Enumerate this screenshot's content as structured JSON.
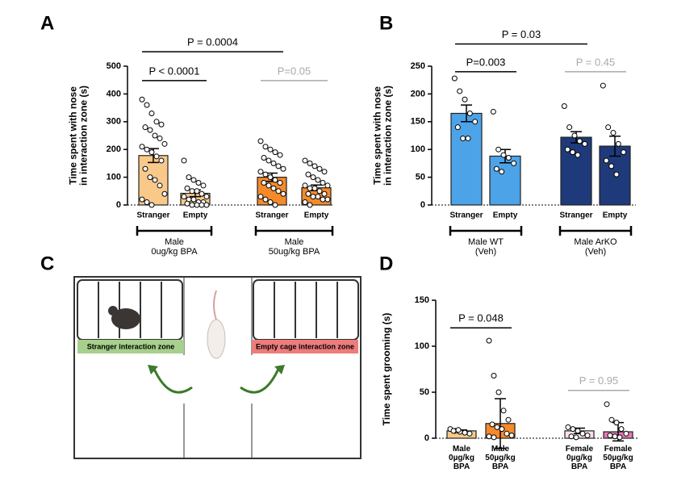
{
  "chart_data": [
    {
      "type": "bar",
      "panel": "A",
      "ylabel": "Time spent with nose\nin interaction zone (s)",
      "categories": [
        "Stranger",
        "Empty",
        "Stranger",
        "Empty"
      ],
      "values": [
        178,
        42,
        100,
        62
      ],
      "errors": [
        25,
        12,
        15,
        10
      ],
      "colors": [
        "#f9c98a",
        "#f9c98a",
        "#f58a2a",
        "#f58a2a"
      ],
      "points": [
        [
          380,
          360,
          330,
          300,
          290,
          280,
          270,
          250,
          240,
          220,
          210,
          200,
          190,
          175,
          160,
          130,
          100,
          90,
          70,
          40,
          20,
          10,
          0
        ],
        [
          160,
          100,
          90,
          80,
          70,
          60,
          50,
          50,
          40,
          30,
          30,
          20,
          20,
          10,
          10,
          5,
          0,
          0,
          0,
          0
        ],
        [
          230,
          210,
          200,
          190,
          180,
          170,
          160,
          150,
          140,
          130,
          120,
          110,
          100,
          90,
          80,
          80,
          70,
          60,
          50,
          40,
          30,
          20,
          10,
          0
        ],
        [
          160,
          150,
          140,
          130,
          120,
          110,
          100,
          90,
          80,
          70,
          70,
          60,
          60,
          50,
          40,
          40,
          30,
          30,
          20,
          20,
          10,
          0
        ]
      ],
      "ylim": [
        0,
        500
      ],
      "yticks": [
        0,
        100,
        200,
        300,
        400,
        500
      ],
      "annotations": [
        {
          "text": "P < 0.0001",
          "from": 0,
          "to": 1,
          "level": 448,
          "color": "#000000"
        },
        {
          "text": "P = 0.0004",
          "from": 0,
          "to": 2,
          "level": 552,
          "color": "#000000"
        },
        {
          "text": "P=0.05",
          "from": 2,
          "to": 3,
          "level": 448,
          "color": "#aaaaaa"
        }
      ],
      "groups": [
        {
          "label": "Male\n0ug/kg BPA",
          "from": 0,
          "to": 1
        },
        {
          "label": "Male\n50ug/kg BPA",
          "from": 2,
          "to": 3
        }
      ]
    },
    {
      "type": "bar",
      "panel": "B",
      "ylabel": "Time spent with nose\nin interaction zone (s)",
      "categories": [
        "Stranger",
        "Empty",
        "Stranger",
        "Empty"
      ],
      "values": [
        165,
        88,
        122,
        106
      ],
      "errors": [
        15,
        12,
        10,
        18
      ],
      "colors": [
        "#4da3e8",
        "#4da3e8",
        "#1f3a7a",
        "#1f3a7a"
      ],
      "points": [
        [
          228,
          205,
          190,
          165,
          150,
          140,
          120,
          120
        ],
        [
          168,
          100,
          90,
          85,
          75,
          65,
          60
        ],
        [
          178,
          140,
          125,
          115,
          110,
          100,
          95,
          90
        ],
        [
          215,
          140,
          130,
          110,
          95,
          80,
          70,
          55
        ]
      ],
      "ylim": [
        0,
        250
      ],
      "yticks": [
        0,
        50,
        100,
        150,
        200,
        250
      ],
      "annotations": [
        {
          "text": "P=0.003",
          "from": 0,
          "to": 1,
          "level": 240,
          "color": "#000000"
        },
        {
          "text": "P = 0.03",
          "from": 0,
          "to": 2,
          "level": 290,
          "color": "#000000"
        },
        {
          "text": "P = 0.45",
          "from": 2,
          "to": 3,
          "level": 240,
          "color": "#aaaaaa"
        }
      ],
      "groups": [
        {
          "label": "Male WT\n(Veh)",
          "from": 0,
          "to": 1
        },
        {
          "label": "Male ArKO\n(Veh)",
          "from": 2,
          "to": 3
        }
      ]
    },
    {
      "type": "bar",
      "panel": "D",
      "ylabel": "Time spent grooming (s)",
      "categories": [
        "Male\n0µg/kg\nBPA",
        "Male\n50µg/kg\nBPA",
        "Female\n0µg/kg\nBPA",
        "Female\n50µg/kg\nBPA"
      ],
      "values": [
        8,
        16,
        8,
        7
      ],
      "errors": [
        1,
        27,
        3,
        10
      ],
      "colors": [
        "#f9c98a",
        "#f58a2a",
        "#fbe0ee",
        "#e67ab4"
      ],
      "points": [
        [
          10,
          8,
          7,
          6,
          5,
          8,
          9
        ],
        [
          106,
          68,
          50,
          30,
          20,
          15,
          12,
          10,
          5,
          3,
          2,
          1
        ],
        [
          12,
          10,
          8,
          5,
          3,
          2,
          1
        ],
        [
          37,
          20,
          17,
          10,
          5,
          3,
          2,
          1
        ]
      ],
      "ylim": [
        0,
        150
      ],
      "yticks": [
        0,
        50,
        100,
        150
      ],
      "annotations": [
        {
          "text": "P = 0.048",
          "from": 0,
          "to": 1,
          "level": 120,
          "color": "#000000"
        },
        {
          "text": "P = 0.95",
          "from": 2,
          "to": 3,
          "level": 52,
          "color": "#aaaaaa"
        }
      ],
      "groups": []
    }
  ],
  "diagram": {
    "panel": "C",
    "left_zone": "Stranger  interaction zone",
    "right_zone": "Empty cage interaction zone"
  }
}
